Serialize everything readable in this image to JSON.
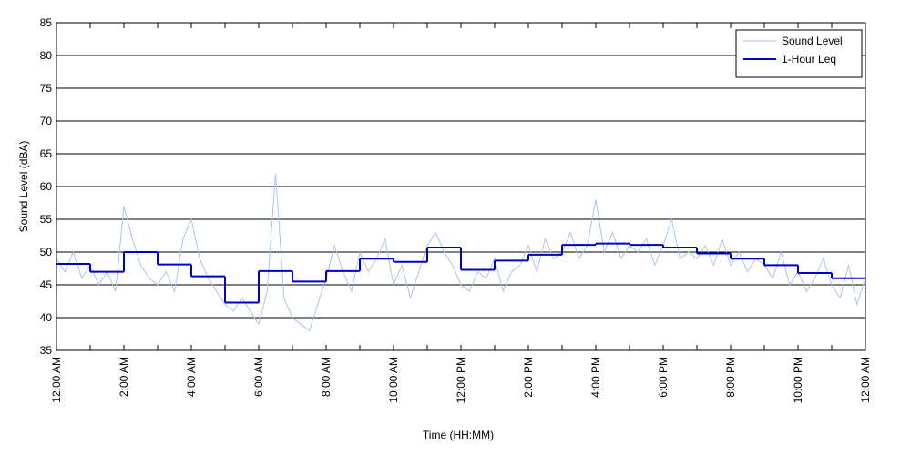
{
  "chart_data": {
    "type": "line",
    "x_label": "Time (HH:MM)",
    "y_label": "Sound Level (dBA)",
    "x": [
      0,
      0.25,
      0.5,
      0.75,
      1,
      1.25,
      1.5,
      1.75,
      2,
      2.25,
      2.5,
      2.75,
      3,
      3.25,
      3.5,
      3.75,
      4,
      4.25,
      4.5,
      4.75,
      5,
      5.25,
      5.5,
      5.75,
      6,
      6.25,
      6.5,
      6.75,
      7,
      7.25,
      7.5,
      7.75,
      8,
      8.25,
      8.5,
      8.75,
      9,
      9.25,
      9.5,
      9.75,
      10,
      10.25,
      10.5,
      10.75,
      11,
      11.25,
      11.5,
      11.75,
      12,
      12.25,
      12.5,
      12.75,
      13,
      13.25,
      13.5,
      13.75,
      14,
      14.25,
      14.5,
      14.75,
      15,
      15.25,
      15.5,
      15.75,
      16,
      16.25,
      16.5,
      16.75,
      17,
      17.25,
      17.5,
      17.75,
      18,
      18.25,
      18.5,
      18.75,
      19,
      19.25,
      19.5,
      19.75,
      20,
      20.25,
      20.5,
      20.75,
      21,
      21.25,
      21.5,
      21.75,
      22,
      22.25,
      22.5,
      22.75,
      23,
      23.25,
      23.5,
      23.75,
      24
    ],
    "series": [
      {
        "name": "Sound Level",
        "color": "#a9c3f2",
        "width": 1,
        "values": [
          49,
          47,
          50,
          46,
          48,
          45,
          47,
          44,
          57,
          52,
          48,
          46,
          45,
          47,
          44,
          52,
          55,
          49,
          46,
          44,
          42,
          41,
          43,
          41,
          39,
          44,
          62,
          43,
          40,
          39,
          38,
          42,
          46,
          51,
          47,
          44,
          50,
          47,
          49,
          52,
          45,
          48,
          43,
          47,
          51,
          53,
          50,
          48,
          45,
          44,
          47,
          46,
          49,
          44,
          47,
          48,
          51,
          47,
          52,
          49,
          50,
          53,
          49,
          51,
          58,
          50,
          53,
          49,
          51,
          50,
          52,
          48,
          51,
          55,
          49,
          50,
          49,
          51,
          48,
          52,
          48,
          50,
          47,
          49,
          48,
          46,
          50,
          45,
          47,
          44,
          46,
          49,
          45,
          43,
          48,
          42,
          46
        ]
      },
      {
        "name": "1-Hour Leq",
        "color": "#0000c8",
        "width": 2,
        "step": true,
        "x": [
          0,
          1,
          2,
          3,
          4,
          5,
          6,
          7,
          8,
          9,
          10,
          11,
          12,
          13,
          14,
          15,
          16,
          17,
          18,
          19,
          20,
          21,
          22,
          23
        ],
        "values": [
          48.2,
          47.0,
          50.0,
          48.1,
          46.3,
          42.3,
          47.1,
          45.5,
          47.1,
          49.0,
          48.5,
          50.7,
          47.3,
          48.7,
          49.6,
          51.1,
          51.3,
          51.1,
          50.7,
          49.8,
          49.0,
          48.0,
          46.8,
          46.0
        ]
      }
    ],
    "xlim": [
      0,
      24
    ],
    "xticks": [
      {
        "value": 0,
        "label": "12:00 AM"
      },
      {
        "value": 2,
        "label": "2:00 AM"
      },
      {
        "value": 4,
        "label": "4:00 AM"
      },
      {
        "value": 6,
        "label": "6:00 AM"
      },
      {
        "value": 8,
        "label": "8:00 AM"
      },
      {
        "value": 10,
        "label": "10:00 AM"
      },
      {
        "value": 12,
        "label": "12:00 PM"
      },
      {
        "value": 14,
        "label": "2:00 PM"
      },
      {
        "value": 16,
        "label": "4:00 PM"
      },
      {
        "value": 18,
        "label": "6:00 PM"
      },
      {
        "value": 20,
        "label": "8:00 PM"
      },
      {
        "value": 22,
        "label": "10:00 PM"
      },
      {
        "value": 24,
        "label": "12:00 AM"
      }
    ],
    "xminorticks": [
      1,
      3,
      5,
      7,
      9,
      11,
      13,
      15,
      17,
      19,
      21,
      23
    ],
    "ylim": [
      35,
      85
    ],
    "yticks": [
      35,
      40,
      45,
      50,
      55,
      60,
      65,
      70,
      75,
      80,
      85
    ],
    "grid": true,
    "legend": "upper right"
  }
}
